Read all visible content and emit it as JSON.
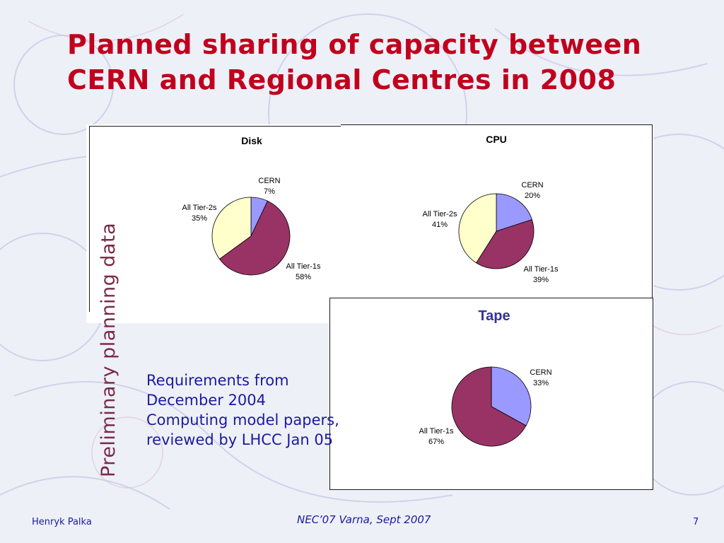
{
  "slide": {
    "title_line1": "Planned sharing of capacity between",
    "title_line2": "CERN and Regional Centres in 2008",
    "side_label": "Preliminary planning data",
    "note_lines": [
      "Requirements from",
      "December 2004",
      "Computing model papers,",
      "reviewed by LHCC Jan 05"
    ],
    "footer_left": "Henryk Palka",
    "footer_center": "NEC’07 Varna, Sept 2007",
    "footer_right": "7"
  },
  "chart_data": [
    {
      "type": "pie",
      "title": "Disk",
      "slices": [
        {
          "label": "CERN",
          "value": 7,
          "value_label": "7%",
          "color": "#9999ff"
        },
        {
          "label": "All Tier-1s",
          "value": 58,
          "value_label": "58%",
          "color": "#993366"
        },
        {
          "label": "All Tier-2s",
          "value": 35,
          "value_label": "35%",
          "color": "#ffffcc"
        }
      ]
    },
    {
      "type": "pie",
      "title": "CPU",
      "slices": [
        {
          "label": "CERN",
          "value": 20,
          "value_label": "20%",
          "color": "#9999ff"
        },
        {
          "label": "All Tier-1s",
          "value": 39,
          "value_label": "39%",
          "color": "#993366"
        },
        {
          "label": "All Tier-2s",
          "value": 41,
          "value_label": "41%",
          "color": "#ffffcc"
        }
      ]
    },
    {
      "type": "pie",
      "title": "Tape",
      "slices": [
        {
          "label": "CERN",
          "value": 33,
          "value_label": "33%",
          "color": "#9999ff"
        },
        {
          "label": "All Tier-1s",
          "value": 67,
          "value_label": "67%",
          "color": "#993366"
        }
      ]
    }
  ]
}
